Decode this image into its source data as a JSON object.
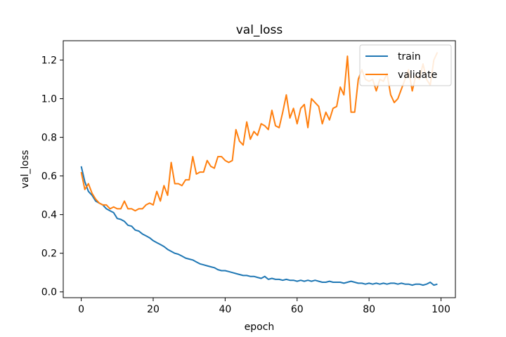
{
  "chart_data": {
    "type": "line",
    "title": "val_loss",
    "xlabel": "epoch",
    "ylabel": "val_loss",
    "xlim": [
      -5,
      104
    ],
    "ylim": [
      -0.03,
      1.3
    ],
    "xticks": [
      0,
      20,
      40,
      60,
      80,
      100
    ],
    "xtick_labels": [
      "0",
      "20",
      "40",
      "60",
      "80",
      "100"
    ],
    "yticks": [
      0.0,
      0.2,
      0.4,
      0.6,
      0.8,
      1.0,
      1.2
    ],
    "ytick_labels": [
      "0.0",
      "0.2",
      "0.4",
      "0.6",
      "0.8",
      "1.0",
      "1.2"
    ],
    "grid": false,
    "legend_position": "top-right",
    "x": [
      0,
      1,
      2,
      3,
      4,
      5,
      6,
      7,
      8,
      9,
      10,
      11,
      12,
      13,
      14,
      15,
      16,
      17,
      18,
      19,
      20,
      21,
      22,
      23,
      24,
      25,
      26,
      27,
      28,
      29,
      30,
      31,
      32,
      33,
      34,
      35,
      36,
      37,
      38,
      39,
      40,
      41,
      42,
      43,
      44,
      45,
      46,
      47,
      48,
      49,
      50,
      51,
      52,
      53,
      54,
      55,
      56,
      57,
      58,
      59,
      60,
      61,
      62,
      63,
      64,
      65,
      66,
      67,
      68,
      69,
      70,
      71,
      72,
      73,
      74,
      75,
      76,
      77,
      78,
      79,
      80,
      81,
      82,
      83,
      84,
      85,
      86,
      87,
      88,
      89,
      90,
      91,
      92,
      93,
      94,
      95,
      96,
      97,
      98,
      99
    ],
    "series": [
      {
        "name": "train",
        "color": "#1f77b4",
        "values": [
          0.65,
          0.57,
          0.52,
          0.5,
          0.47,
          0.46,
          0.45,
          0.43,
          0.42,
          0.41,
          0.38,
          0.375,
          0.365,
          0.345,
          0.34,
          0.32,
          0.315,
          0.3,
          0.29,
          0.28,
          0.265,
          0.255,
          0.245,
          0.235,
          0.22,
          0.21,
          0.2,
          0.195,
          0.185,
          0.175,
          0.17,
          0.165,
          0.155,
          0.145,
          0.14,
          0.135,
          0.13,
          0.125,
          0.115,
          0.11,
          0.11,
          0.105,
          0.1,
          0.095,
          0.09,
          0.085,
          0.085,
          0.08,
          0.08,
          0.075,
          0.07,
          0.08,
          0.065,
          0.07,
          0.065,
          0.065,
          0.06,
          0.065,
          0.06,
          0.06,
          0.055,
          0.06,
          0.055,
          0.06,
          0.055,
          0.06,
          0.055,
          0.05,
          0.05,
          0.055,
          0.05,
          0.05,
          0.05,
          0.045,
          0.05,
          0.055,
          0.05,
          0.045,
          0.045,
          0.04,
          0.045,
          0.04,
          0.045,
          0.04,
          0.045,
          0.04,
          0.045,
          0.045,
          0.04,
          0.045,
          0.04,
          0.04,
          0.035,
          0.04,
          0.04,
          0.035,
          0.04,
          0.05,
          0.035,
          0.04
        ]
      },
      {
        "name": "validate",
        "color": "#ff7f0e",
        "values": [
          0.62,
          0.53,
          0.56,
          0.51,
          0.48,
          0.46,
          0.45,
          0.45,
          0.43,
          0.44,
          0.43,
          0.43,
          0.47,
          0.43,
          0.43,
          0.42,
          0.43,
          0.43,
          0.45,
          0.46,
          0.45,
          0.52,
          0.47,
          0.55,
          0.5,
          0.67,
          0.56,
          0.56,
          0.55,
          0.58,
          0.58,
          0.7,
          0.61,
          0.62,
          0.62,
          0.68,
          0.65,
          0.64,
          0.7,
          0.7,
          0.68,
          0.67,
          0.68,
          0.84,
          0.78,
          0.76,
          0.88,
          0.79,
          0.83,
          0.81,
          0.87,
          0.86,
          0.84,
          0.94,
          0.86,
          0.85,
          0.93,
          1.02,
          0.9,
          0.95,
          0.87,
          0.95,
          0.97,
          0.85,
          1.0,
          0.98,
          0.96,
          0.87,
          0.93,
          0.89,
          0.95,
          0.96,
          1.06,
          1.02,
          1.22,
          0.93,
          0.93,
          1.1,
          1.15,
          1.1,
          1.09,
          1.1,
          1.04,
          1.1,
          1.09,
          1.13,
          1.02,
          0.98,
          1.0,
          1.05,
          1.1,
          1.15,
          1.04,
          1.12,
          1.1,
          1.18,
          1.1,
          1.07,
          1.2,
          1.24
        ]
      }
    ]
  }
}
